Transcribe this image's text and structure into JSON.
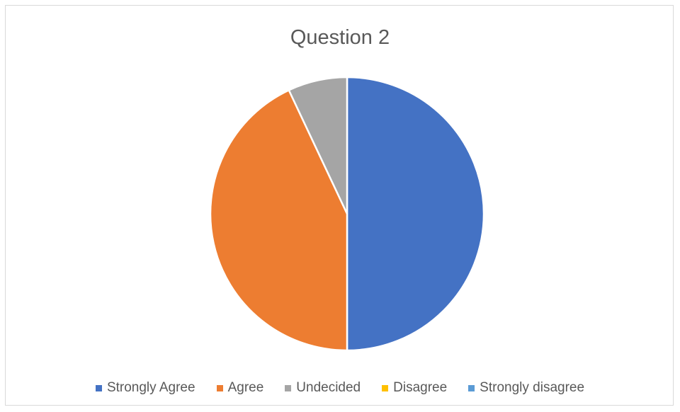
{
  "chart_data": {
    "type": "pie",
    "title": "Question 2",
    "categories": [
      "Strongly Agree",
      "Agree",
      "Undecided",
      "Disagree",
      "Strongly disagree"
    ],
    "values": [
      50,
      43,
      7,
      0,
      0
    ],
    "colors": [
      "#4472c4",
      "#ed7d31",
      "#a5a5a5",
      "#ffc000",
      "#5b9bd5"
    ],
    "legend_position": "bottom",
    "start_angle_deg": 0,
    "direction": "clockwise"
  }
}
